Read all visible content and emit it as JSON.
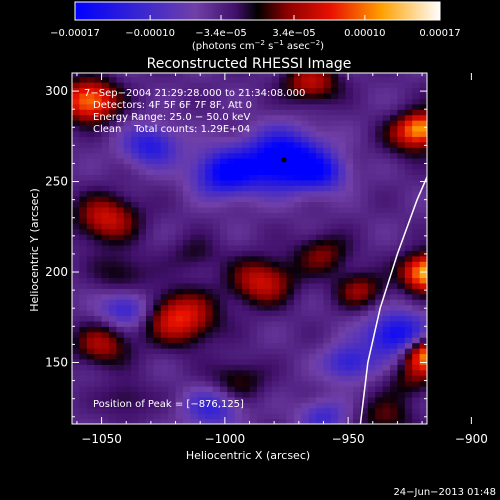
{
  "chart_data": {
    "type": "heatmap",
    "title": "Reconstructed RHESSI Image",
    "xlabel": "Heliocentric X (arcsec)",
    "ylabel": "Heliocentric Y (arcsec)",
    "xlim": [
      -1062,
      -918
    ],
    "ylim": [
      116,
      310
    ],
    "xticks": [
      -1050,
      -1000,
      -950,
      -900
    ],
    "yticks": [
      150,
      200,
      250,
      300
    ],
    "xtick_labels": [
      "−1050",
      "−1000",
      "−950",
      "−900"
    ],
    "ytick_labels": [
      "150",
      "200",
      "250",
      "300"
    ],
    "colorbar": {
      "range": [
        -0.00017,
        0.00017
      ],
      "ticks": [
        -0.00017,
        -0.0001,
        -3.4e-05,
        3.4e-05,
        0.0001,
        0.00017
      ],
      "tick_labels": [
        "−0.00017",
        "−0.00010",
        "−3.4e−05",
        "3.4e−05",
        "0.00010",
        "0.00017"
      ],
      "units_main": "(photons cm",
      "units_sup1": "−2",
      "units_mid": " s",
      "units_sup2": "−1",
      "units_end": " asec",
      "units_sup3": "−2",
      "units_close": ")"
    },
    "annotations": {
      "time_range": "7−Sep−2004 21:29:28.000 to 21:34:08.000",
      "detectors": "Detectors: 4F 5F 6F 7F 8F, Att 0",
      "energy": "Energy Range: 25.0 − 50.0 keV",
      "clean": "Clean    Total counts: 1.29E+04",
      "peak": "Position of Peak = [−876,125]"
    },
    "marker": {
      "x": -976,
      "y": 262
    },
    "limb": [
      [
        -945,
        116
      ],
      [
        -942,
        150
      ],
      [
        -937,
        180
      ],
      [
        -930,
        210
      ],
      [
        -922,
        240
      ],
      [
        -914,
        265
      ],
      [
        -906,
        285
      ],
      [
        -897,
        310
      ]
    ],
    "blobs": [
      {
        "x": -1055,
        "y": 295,
        "v": 0.85,
        "s": 8
      },
      {
        "x": -1048,
        "y": 230,
        "v": 0.55,
        "s": 9
      },
      {
        "x": -1042,
        "y": 200,
        "v": 0.25,
        "s": 8
      },
      {
        "x": -1050,
        "y": 160,
        "v": 0.45,
        "s": 8
      },
      {
        "x": -1040,
        "y": 130,
        "v": 0.2,
        "s": 7
      },
      {
        "x": -1018,
        "y": 175,
        "v": 0.65,
        "s": 10
      },
      {
        "x": -1012,
        "y": 210,
        "v": 0.2,
        "s": 7
      },
      {
        "x": -985,
        "y": 195,
        "v": 0.55,
        "s": 9
      },
      {
        "x": -995,
        "y": 140,
        "v": 0.3,
        "s": 8
      },
      {
        "x": -965,
        "y": 305,
        "v": 0.5,
        "s": 8
      },
      {
        "x": -960,
        "y": 210,
        "v": 0.35,
        "s": 8
      },
      {
        "x": -945,
        "y": 190,
        "v": 0.4,
        "s": 7
      },
      {
        "x": -925,
        "y": 275,
        "v": 0.35,
        "s": 8
      },
      {
        "x": -935,
        "y": 120,
        "v": 0.3,
        "s": 8
      },
      {
        "x": -925,
        "y": 140,
        "v": 0.25,
        "s": 7
      },
      {
        "x": -900,
        "y": 300,
        "v": 0.9,
        "s": 8
      },
      {
        "x": -895,
        "y": 260,
        "v": 0.55,
        "s": 8
      },
      {
        "x": -898,
        "y": 205,
        "v": 1.0,
        "s": 8
      },
      {
        "x": -900,
        "y": 150,
        "v": 0.85,
        "s": 7
      },
      {
        "x": -918,
        "y": 200,
        "v": 1.0,
        "s": 7
      },
      {
        "x": -918,
        "y": 155,
        "v": 0.95,
        "s": 7
      },
      {
        "x": -920,
        "y": 280,
        "v": 0.7,
        "s": 6
      },
      {
        "x": -976,
        "y": 262,
        "v": -1.0,
        "s": 11
      },
      {
        "x": -1000,
        "y": 255,
        "v": -0.75,
        "s": 9
      },
      {
        "x": -1030,
        "y": 270,
        "v": -0.55,
        "s": 8
      },
      {
        "x": -960,
        "y": 255,
        "v": -0.45,
        "s": 7
      },
      {
        "x": -930,
        "y": 165,
        "v": -0.75,
        "s": 9
      },
      {
        "x": -950,
        "y": 150,
        "v": -0.5,
        "s": 7
      },
      {
        "x": -1040,
        "y": 180,
        "v": -0.5,
        "s": 7
      },
      {
        "x": -1005,
        "y": 125,
        "v": -0.45,
        "s": 8
      },
      {
        "x": -960,
        "y": 120,
        "v": -0.4,
        "s": 7
      }
    ]
  },
  "footer": {
    "timestamp": "24−Jun−2013 01:48"
  }
}
